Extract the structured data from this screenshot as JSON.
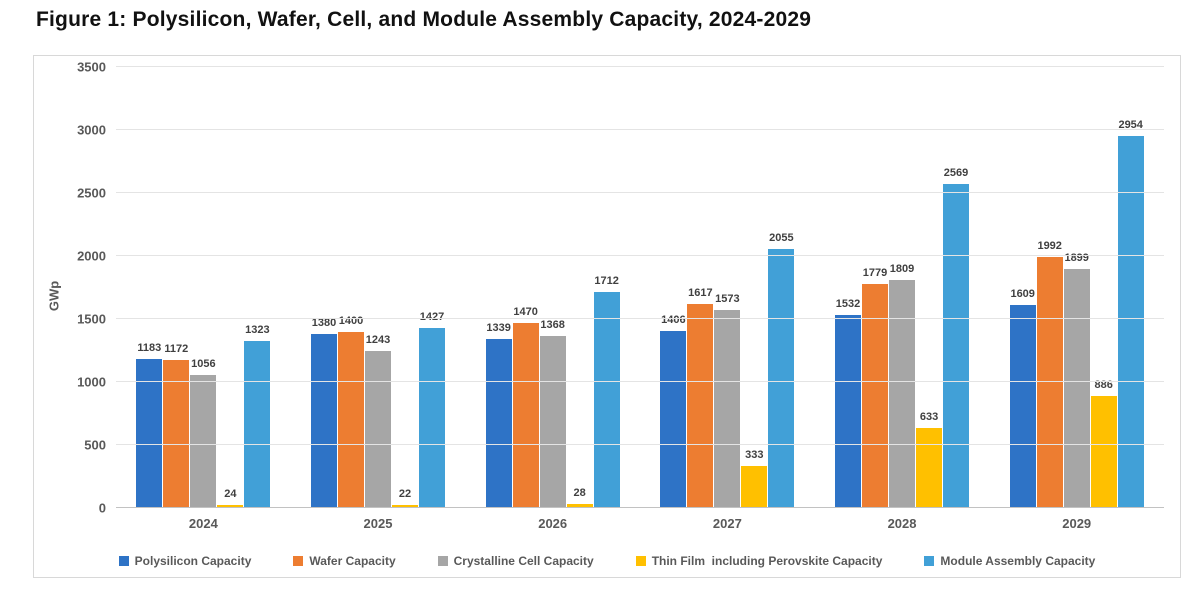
{
  "figure_title": "Figure 1: Polysilicon, Wafer, Cell, and Module Assembly Capacity, 2024-2029",
  "chart_data": {
    "type": "bar",
    "title": "Figure 1: Polysilicon, Wafer, Cell, and Module Assembly Capacity, 2024-2029",
    "xlabel": "",
    "ylabel": "GWp",
    "ylim": [
      0,
      3500
    ],
    "yticks": [
      0,
      500,
      1000,
      1500,
      2000,
      2500,
      3000,
      3500
    ],
    "grid": true,
    "bar_labels": true,
    "legend_position": "bottom",
    "categories": [
      "2024",
      "2025",
      "2026",
      "2027",
      "2028",
      "2029"
    ],
    "series": [
      {
        "name": "Polysilicon Capacity",
        "color": "#2E73C6",
        "values": [
          1183,
          1380,
          1339,
          1406,
          1532,
          1609
        ]
      },
      {
        "name": "Wafer Capacity",
        "color": "#ED7D31",
        "values": [
          1172,
          1400,
          1470,
          1617,
          1779,
          1992
        ]
      },
      {
        "name": "Crystalline Cell Capacity",
        "color": "#A6A6A6",
        "values": [
          1056,
          1243,
          1368,
          1573,
          1809,
          1899
        ]
      },
      {
        "name": "Thin Film  including Perovskite Capacity",
        "color": "#FFC000",
        "values": [
          24,
          22,
          28,
          333,
          633,
          886
        ]
      },
      {
        "name": "Module Assembly Capacity",
        "color": "#41A0D7",
        "values": [
          1323,
          1427,
          1712,
          2055,
          2569,
          2954
        ]
      }
    ]
  }
}
